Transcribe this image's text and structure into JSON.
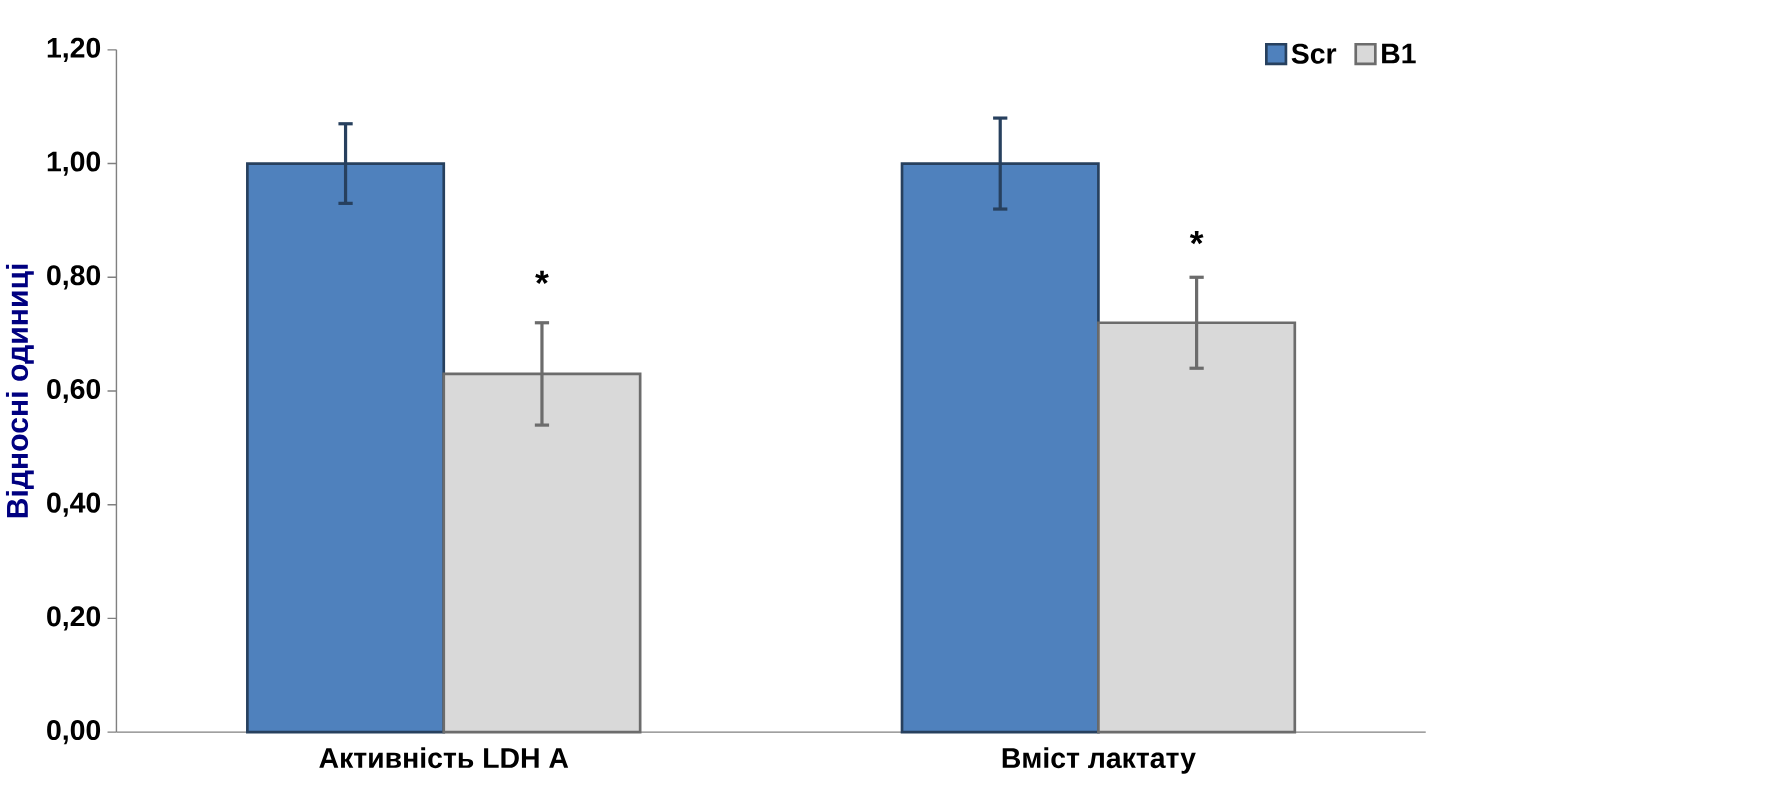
{
  "chart_data": {
    "type": "bar",
    "categories": [
      "Активність LDH A",
      "Вміст лактату"
    ],
    "series": [
      {
        "name": "Scr",
        "color": "#4f81bd",
        "values": [
          1.0,
          1.0
        ],
        "errors": [
          0.07,
          0.08
        ]
      },
      {
        "name": "B1",
        "color": "#d9d9d9",
        "values": [
          0.63,
          0.72
        ],
        "errors": [
          0.09,
          0.08
        ]
      }
    ],
    "ylabel": "Відносні одиниці",
    "ylim": [
      0,
      1.2
    ],
    "yticks": [
      {
        "value": 0,
        "label": "0,00"
      },
      {
        "value": 0.2,
        "label": "0,20"
      },
      {
        "value": 0.4,
        "label": "0,40"
      },
      {
        "value": 0.6,
        "label": "0,60"
      },
      {
        "value": 0.8,
        "label": "0,80"
      },
      {
        "value": 1.0,
        "label": "1,00"
      },
      {
        "value": 1.2,
        "label": "1,20"
      }
    ],
    "legend": "top right",
    "annotations": [
      {
        "text": "*",
        "x": "Активність LDH A",
        "y": 0.79
      },
      {
        "text": "*",
        "x": "Вміст лактату",
        "y": 0.86
      }
    ]
  }
}
